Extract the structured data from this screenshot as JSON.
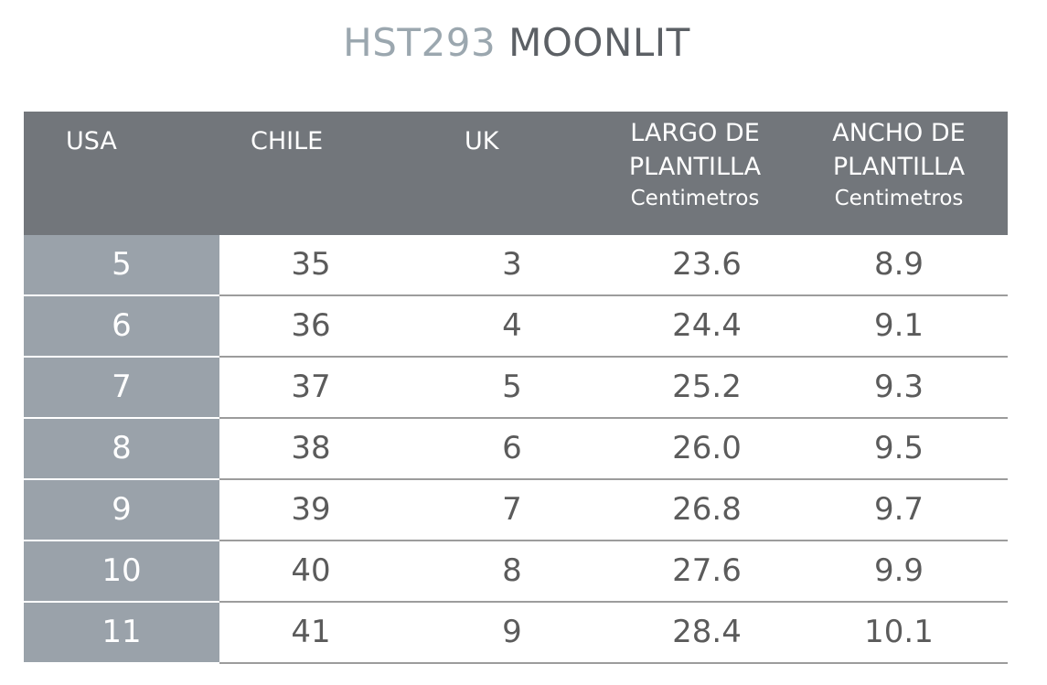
{
  "title": {
    "code": "HST293",
    "name": "MOONLIT"
  },
  "headers": {
    "usa": "USA",
    "chile": "CHILE",
    "uk": "UK",
    "largo": {
      "line1": "LARGO DE",
      "line2": "PLANTILLA",
      "unit": "Centimetros"
    },
    "ancho": {
      "line1": "ANCHO DE",
      "line2": "PLANTILLA",
      "unit": "Centimetros"
    }
  },
  "rows": [
    {
      "usa": "5",
      "chile": "35",
      "uk": "3",
      "largo": "23.6",
      "ancho": "8.9"
    },
    {
      "usa": "6",
      "chile": "36",
      "uk": "4",
      "largo": "24.4",
      "ancho": "9.1"
    },
    {
      "usa": "7",
      "chile": "37",
      "uk": "5",
      "largo": "25.2",
      "ancho": "9.3"
    },
    {
      "usa": "8",
      "chile": "38",
      "uk": "6",
      "largo": "26.0",
      "ancho": "9.5"
    },
    {
      "usa": "9",
      "chile": "39",
      "uk": "7",
      "largo": "26.8",
      "ancho": "9.7"
    },
    {
      "usa": "10",
      "chile": "40",
      "uk": "8",
      "largo": "27.6",
      "ancho": "9.9"
    },
    {
      "usa": "11",
      "chile": "41",
      "uk": "9",
      "largo": "28.4",
      "ancho": "10.1"
    }
  ],
  "colors": {
    "header_bg": "#72767b",
    "usa_col_bg": "#9aa2aa",
    "title_code": "#9ba7af",
    "title_name": "#5c6065"
  }
}
